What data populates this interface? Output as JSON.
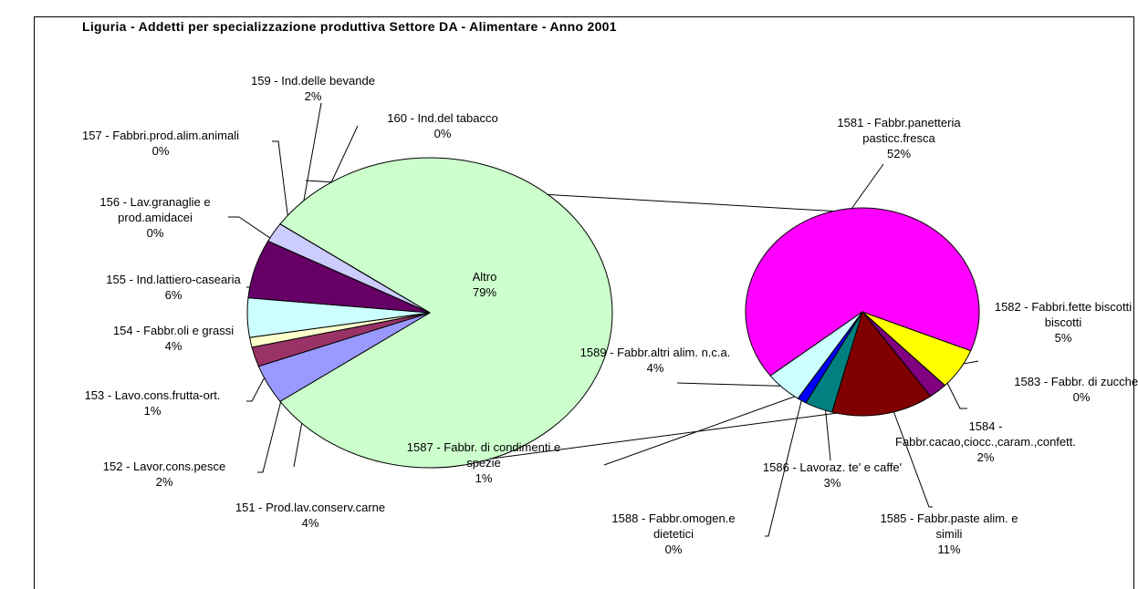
{
  "chart_data": {
    "type": "pie-of-pie",
    "title": "Liguria - Addetti per specializzazione produttiva Settore DA - Alimentare - Anno 2001",
    "series": [
      {
        "categories": [
          "Altro",
          "151 - Prod.lav.conserv.carne",
          "152 - Lavor.cons.pesce",
          "153 - Lavo.cons.frutta-ort.",
          "154 - Fabbr.oli e grassi",
          "155 - Ind.lattiero-casearia",
          "156 - Lav.granaglie e prod.amidacei",
          "157 - Fabbri.prod.alim.animali",
          "159 - Ind.delle bevande",
          "160 - Ind.del tabacco"
        ],
        "values": [
          79,
          4,
          2,
          1,
          4,
          6,
          0,
          0,
          2,
          0
        ],
        "value_labels": [
          "79%",
          "4%",
          "2%",
          "1%",
          "4%",
          "6%",
          "0%",
          "0%",
          "2%",
          "0%"
        ],
        "colors": [
          "#ccffcc",
          "#9999ff",
          "#993366",
          "#ffffcc",
          "#ccffff",
          "#660066",
          "#ff8080",
          "#0066cc",
          "#ccccff",
          "#000080"
        ]
      },
      {
        "categories": [
          "1581 - Fabbr.panetteria pasticc.fresca",
          "1582 - Fabbri.fette biscotti biscotti",
          "1583 - Fabbr. di zucchero",
          "1584 - Fabbr.cacao,ciocc.,caram.,confett.",
          "1585 - Fabbr.paste alim. e simili",
          "1586 - Lavoraz. te' e caffe'",
          "1587 - Fabbr. di condimenti e spezie",
          "1588 - Fabbr.omogen.e dietetici",
          "1589 - Fabbr.altri alim. n.c.a."
        ],
        "values": [
          52,
          5,
          0,
          2,
          11,
          3,
          1,
          0,
          4
        ],
        "value_labels": [
          "52%",
          "5%",
          "0%",
          "2%",
          "11%",
          "3%",
          "1%",
          "0%",
          "4%"
        ],
        "colors": [
          "#ff00ff",
          "#ffff00",
          "#00ffff",
          "#800080",
          "#800000",
          "#008080",
          "#0000ff",
          "#00ccff",
          "#ccffff"
        ]
      }
    ]
  }
}
